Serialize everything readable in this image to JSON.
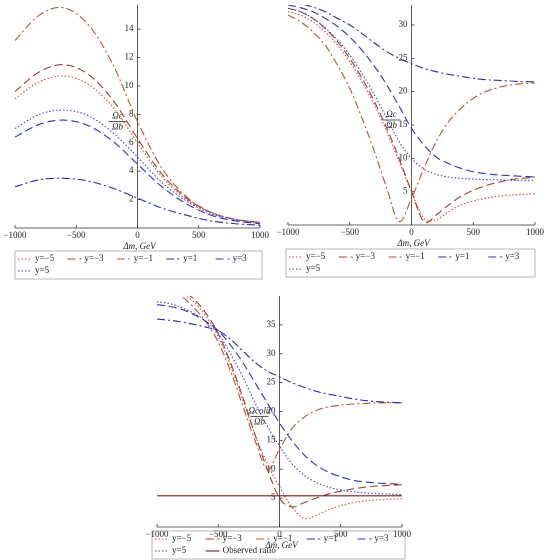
{
  "chart_data": [
    {
      "type": "line",
      "x": [
        -1000,
        -800,
        -600,
        -400,
        -200,
        0,
        200,
        400,
        600,
        800,
        1000
      ],
      "xlim": [
        -1000,
        1000
      ],
      "ylim": [
        0,
        15.7
      ],
      "xticks": [
        {
          "value": -1000,
          "label": "−1000"
        },
        {
          "value": -500,
          "label": "−500"
        },
        0,
        500,
        1000
      ],
      "yticks": [
        2,
        4,
        6,
        8,
        10,
        12,
        14
      ],
      "x_label": "Δm, GeV",
      "y_label_num": "Ωc",
      "y_label_den": "Ωb",
      "series": [
        {
          "name": "y=−5",
          "color": "#d04a40",
          "dash": "dot",
          "values": [
            9.1,
            10.3,
            10.7,
            10.1,
            8.5,
            6.0,
            3.6,
            2.0,
            1.1,
            0.6,
            0.4
          ]
        },
        {
          "name": "y=−3",
          "color": "#a0402a",
          "dash": "longdash",
          "values": [
            9.6,
            11.0,
            11.5,
            10.8,
            9.0,
            6.3,
            3.8,
            2.1,
            1.1,
            0.6,
            0.4
          ]
        },
        {
          "name": "y=−1",
          "color": "#b0583a",
          "dash": "dashdot",
          "values": [
            13.2,
            15.0,
            15.5,
            14.3,
            11.5,
            7.5,
            4.2,
            2.2,
            1.1,
            0.6,
            0.4
          ]
        },
        {
          "name": "y=1",
          "color": "#2a2ab0",
          "dash": "dashdot",
          "values": [
            2.9,
            3.4,
            3.5,
            3.3,
            2.8,
            2.1,
            1.4,
            0.9,
            0.5,
            0.3,
            0.2
          ]
        },
        {
          "name": "y=3",
          "color": "#3030c0",
          "dash": "longdash",
          "values": [
            6.4,
            7.3,
            7.6,
            7.2,
            6.1,
            4.5,
            2.9,
            1.7,
            0.9,
            0.5,
            0.3
          ]
        },
        {
          "name": "y=5",
          "color": "#4040d0",
          "dash": "dot",
          "values": [
            7.0,
            8.0,
            8.3,
            7.9,
            6.7,
            5.0,
            3.2,
            1.9,
            1.0,
            0.6,
            0.3
          ]
        }
      ]
    },
    {
      "type": "line",
      "x": [
        -1000,
        -900,
        -800,
        -700,
        -600,
        -500,
        -400,
        -300,
        -200,
        -100,
        0,
        100,
        200,
        300,
        400,
        500,
        600,
        700,
        800,
        900,
        1000
      ],
      "xlim": [
        -1000,
        1000
      ],
      "ylim": [
        0,
        33
      ],
      "xticks": [
        {
          "value": -1000,
          "label": "−1000"
        },
        {
          "value": -500,
          "label": "−500"
        },
        0,
        500,
        1000
      ],
      "yticks": [
        5,
        10,
        15,
        20,
        25,
        30
      ],
      "x_label": "Δm, GeV",
      "y_label_num": "Ωc",
      "y_label_den": "Ωb",
      "series": [
        {
          "name": "y=−5",
          "color": "#d04a40",
          "dash": "dot",
          "values": [
            32,
            31.5,
            30.5,
            29,
            27,
            24.5,
            21.5,
            18,
            14,
            9.5,
            5,
            1,
            0.8,
            2,
            3,
            3.6,
            4,
            4.3,
            4.5,
            4.6,
            4.7
          ]
        },
        {
          "name": "y=−3",
          "color": "#a0402a",
          "dash": "longdash",
          "values": [
            32.5,
            32,
            31,
            29.5,
            27.5,
            25,
            22,
            18.5,
            14.5,
            10,
            5,
            0.5,
            1.5,
            3,
            4.3,
            5.2,
            5.9,
            6.4,
            6.8,
            7,
            7.2
          ]
        },
        {
          "name": "y=−1",
          "color": "#b0583a",
          "dash": "dashdot",
          "values": [
            31.5,
            30.5,
            29,
            27,
            24,
            20.5,
            16,
            11,
            5.5,
            0.5,
            4,
            8.5,
            12.5,
            15.5,
            17.5,
            19,
            20,
            20.6,
            21,
            21.2,
            21.3
          ]
        },
        {
          "name": "y=1",
          "color": "#2a2ab0",
          "dash": "dashdot",
          "values": [
            33.5,
            33.2,
            32.7,
            32,
            31,
            30,
            28.7,
            27.3,
            26,
            25,
            24.2,
            23.5,
            23,
            22.6,
            22.3,
            22,
            21.8,
            21.7,
            21.6,
            21.5,
            21.5
          ]
        },
        {
          "name": "y=3",
          "color": "#3030c0",
          "dash": "longdash",
          "values": [
            33,
            32.6,
            32,
            31,
            29.8,
            28.2,
            26.2,
            23.8,
            21,
            17.8,
            14.5,
            12,
            10.2,
            9.2,
            8.5,
            8,
            7.7,
            7.5,
            7.4,
            7.3,
            7.2
          ]
        },
        {
          "name": "y=5",
          "color": "#4040d0",
          "dash": "dot",
          "values": [
            32.5,
            32,
            31,
            29.6,
            27.8,
            25.5,
            22.7,
            19.5,
            16,
            12.5,
            10,
            8.4,
            7.6,
            7.2,
            7.0,
            6.9,
            6.8,
            6.8,
            6.7,
            6.7,
            6.7
          ]
        }
      ]
    },
    {
      "type": "line",
      "x": [
        -1000,
        -900,
        -800,
        -700,
        -600,
        -500,
        -400,
        -300,
        -200,
        -100,
        0,
        100,
        200,
        300,
        400,
        500,
        600,
        700,
        800,
        900,
        1000
      ],
      "xlim": [
        -1000,
        1000
      ],
      "ylim": [
        0,
        40
      ],
      "xticks": [
        {
          "value": -1000,
          "label": "−1000"
        },
        {
          "value": -500,
          "label": "−500"
        },
        0,
        500,
        1000
      ],
      "yticks": [
        5,
        10,
        15,
        20,
        25,
        30,
        35
      ],
      "x_label": "Δm, GeV",
      "y_label_num": "Ωcold",
      "y_label_den": "Ωb",
      "series": [
        {
          "name": "y=−5",
          "color": "#d04a40",
          "dash": "dot",
          "values": [
            44,
            42,
            40.5,
            39,
            36.5,
            33,
            28,
            22,
            16,
            11,
            7,
            3.5,
            1.5,
            2,
            3,
            3.7,
            4.2,
            4.5,
            4.7,
            4.8,
            4.9
          ]
        },
        {
          "name": "y=−3",
          "color": "#a0402a",
          "dash": "longdash",
          "values": [
            44,
            42.5,
            41,
            39.5,
            37,
            33.5,
            28.5,
            22.5,
            16,
            10,
            5,
            3.5,
            4.2,
            5,
            5.7,
            6.2,
            6.6,
            6.9,
            7.1,
            7.2,
            7.3
          ]
        },
        {
          "name": "y=−1",
          "color": "#b0583a",
          "dash": "dashdot",
          "values": [
            43,
            41.5,
            40,
            38,
            35.5,
            32,
            27,
            21,
            15,
            10,
            13.5,
            17,
            19,
            20.2,
            20.8,
            21.1,
            21.3,
            21.4,
            21.5,
            21.5,
            21.5
          ]
        },
        {
          "name": "y=1",
          "color": "#2a2ab0",
          "dash": "dashdot",
          "values": [
            36,
            35.8,
            35.5,
            35.1,
            34.6,
            34,
            32.5,
            30.5,
            28.5,
            27,
            26,
            25,
            24.2,
            23.5,
            23,
            22.6,
            22.2,
            21.9,
            21.7,
            21.6,
            21.5
          ]
        },
        {
          "name": "y=3",
          "color": "#3030c0",
          "dash": "longdash",
          "values": [
            38.5,
            38.2,
            37.7,
            36.8,
            35.6,
            34,
            31.5,
            28.5,
            25,
            21.5,
            18,
            15,
            12.5,
            10.7,
            9.5,
            8.7,
            8.1,
            7.8,
            7.6,
            7.5,
            7.4
          ]
        },
        {
          "name": "y=5",
          "color": "#4040d0",
          "dash": "dot",
          "values": [
            39,
            38.7,
            38,
            37,
            35.6,
            33.5,
            30,
            26,
            21.5,
            17.5,
            14,
            11,
            9,
            7.7,
            6.9,
            6.4,
            6.1,
            5.9,
            5.8,
            5.7,
            5.6
          ]
        },
        {
          "name": "Observed ratio",
          "color": "#7a1a1a",
          "dash": "solid",
          "values": [
            5.4,
            5.4,
            5.4,
            5.4,
            5.4,
            5.4,
            5.4,
            5.4,
            5.4,
            5.4,
            5.4,
            5.4,
            5.4,
            5.4,
            5.4,
            5.4,
            5.4,
            5.4,
            5.4,
            5.4,
            5.4
          ]
        }
      ]
    }
  ]
}
